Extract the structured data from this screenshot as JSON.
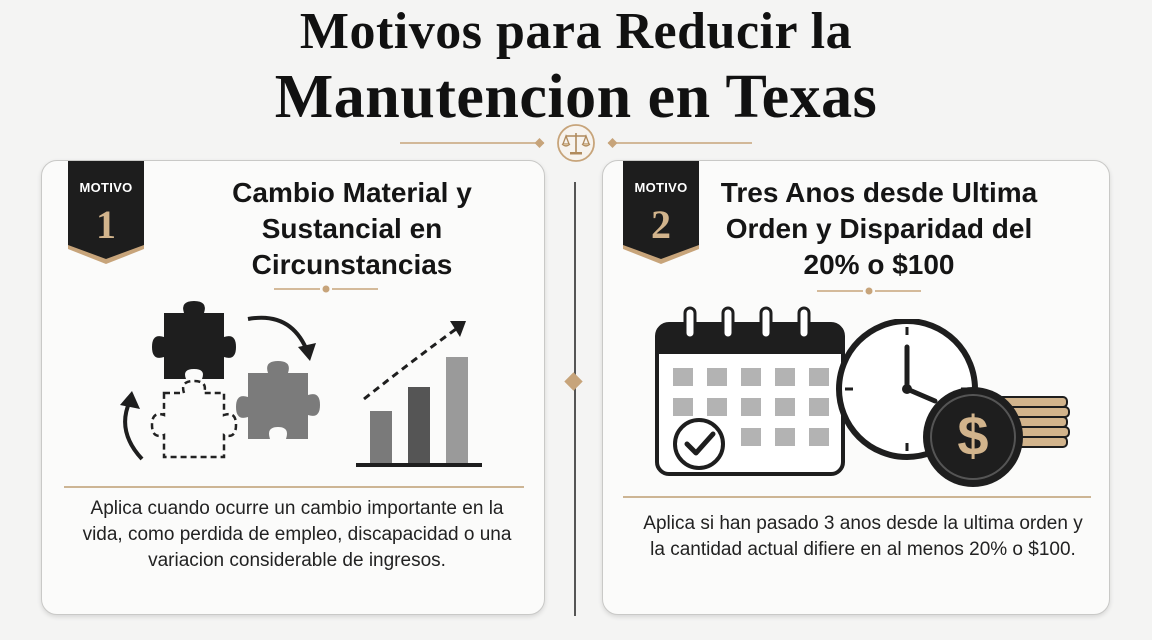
{
  "header": {
    "title_line1": "Motivos para Reducir la",
    "title_line2": "Manutencion en Texas",
    "divider_icon": "scales-of-justice-icon"
  },
  "cards": [
    {
      "badge_label": "MOTIVO",
      "badge_number": "1",
      "title": "Cambio Material y Sustancial en Circunstancias",
      "illustration_icons": [
        "puzzle-pieces-icon",
        "rotating-arrows-icon",
        "bar-chart-icon",
        "dashed-trend-arrow-icon"
      ],
      "description": "Aplica cuando ocurre un cambio importante en la vida, como perdida de empleo, discapacidad o una variacion considerable de ingresos."
    },
    {
      "badge_label": "MOTIVO",
      "badge_number": "2",
      "title": "Tres Anos desde Ultima Orden y Disparidad del 20% o $100",
      "illustration_icons": [
        "calendar-icon",
        "check-icon",
        "clock-icon",
        "dollar-coin-icon",
        "coin-stack-icon"
      ],
      "dollar_symbol": "$",
      "description": "Aplica si han pasado 3 anos desde la ultima orden y la cantidad actual difiere en al menos 20% o $100."
    }
  ],
  "colors": {
    "accent_gold": "#c7a47a",
    "badge_dark": "#1d1d1d",
    "background": "#f4f4f3"
  }
}
